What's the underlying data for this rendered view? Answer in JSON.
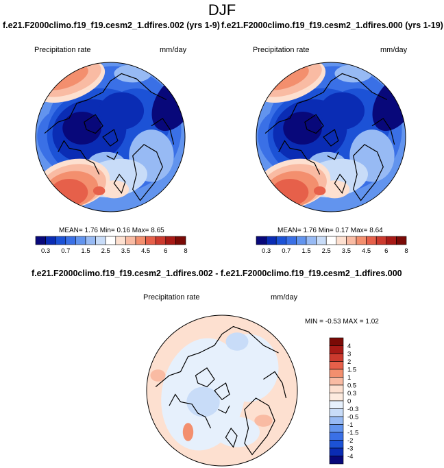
{
  "figure_title": "DJF",
  "colors": {
    "abs_palette": [
      "#08087a",
      "#0a2cb4",
      "#1c52d6",
      "#3a70e6",
      "#6294ee",
      "#97baf4",
      "#c8dcf8",
      "#ffffff",
      "#fde0d0",
      "#f9bba3",
      "#f38f6e",
      "#e6604a",
      "#cc3a2e",
      "#a81a16",
      "#7a0a06"
    ],
    "diff_palette": [
      "#08087a",
      "#0a2cb4",
      "#1c52d6",
      "#3a70e6",
      "#6294ee",
      "#97baf4",
      "#c8dcf8",
      "#e6f0fc",
      "#fdebdf",
      "#fde0d0",
      "#f9bba3",
      "#f38f6e",
      "#e6604a",
      "#cc3a2e",
      "#a81a16",
      "#7a0a06"
    ],
    "coast": "#000000"
  },
  "panels": [
    {
      "title": "f.e21.F2000climo.f19_f19.cesm2_1.dfires.002 (yrs 1-9)",
      "variable": "Precipitation rate",
      "units": "mm/day",
      "stats": {
        "mean_label": "MEAN=",
        "mean": "1.76",
        "min_label": "Min=",
        "min": "0.16",
        "max_label": "Max=",
        "max": "8.65"
      }
    },
    {
      "title": "f.e21.F2000climo.f19_f19.cesm2_1.dfires.000 (yrs 1-19)",
      "variable": "Precipitation rate",
      "units": "mm/day",
      "stats": {
        "mean_label": "MEAN=",
        "mean": "1.76",
        "min_label": "Min=",
        "min": "0.17",
        "max_label": "Max=",
        "max": "8.64"
      }
    }
  ],
  "abs_colorbar_ticks": [
    "0.3",
    "0.7",
    "1.5",
    "2.5",
    "3.5",
    "4.5",
    "6",
    "8"
  ],
  "diff_panel": {
    "title": "f.e21.F2000climo.f19_f19.cesm2_1.dfires.002 - f.e21.F2000climo.f19_f19.cesm2_1.dfires.000",
    "variable": "Precipitation rate",
    "units": "mm/day",
    "stats": {
      "min_label": "MIN =",
      "min": "-0.53",
      "max_label": "MAX =",
      "max": "1.02"
    }
  },
  "diff_colorbar_ticks": [
    "4",
    "3",
    "2",
    "1.5",
    "1",
    "0.5",
    "0.3",
    "0",
    "-0.3",
    "-0.5",
    "-1",
    "-1.5",
    "-2",
    "-3",
    "-4"
  ],
  "chart_data": [
    {
      "type": "heatmap",
      "projection": "north polar stereographic",
      "title": "f.e21.F2000climo.f19_f19.cesm2_1.dfires.002 (yrs 1-9)",
      "variable": "Precipitation rate",
      "units": "mm/day",
      "mean": 1.76,
      "min": 0.16,
      "max": 8.65,
      "levels": [
        0.3,
        0.5,
        0.7,
        1,
        1.5,
        2,
        2.5,
        3,
        3.5,
        4,
        4.5,
        5,
        6,
        7,
        8
      ]
    },
    {
      "type": "heatmap",
      "projection": "north polar stereographic",
      "title": "f.e21.F2000climo.f19_f19.cesm2_1.dfires.000 (yrs 1-19)",
      "variable": "Precipitation rate",
      "units": "mm/day",
      "mean": 1.76,
      "min": 0.17,
      "max": 8.64,
      "levels": [
        0.3,
        0.5,
        0.7,
        1,
        1.5,
        2,
        2.5,
        3,
        3.5,
        4,
        4.5,
        5,
        6,
        7,
        8
      ]
    },
    {
      "type": "heatmap",
      "projection": "north polar stereographic",
      "title": "f.e21.F2000climo.f19_f19.cesm2_1.dfires.002 - f.e21.F2000climo.f19_f19.cesm2_1.dfires.000",
      "variable": "Precipitation rate",
      "units": "mm/day",
      "min": -0.53,
      "max": 1.02,
      "levels": [
        -4,
        -3,
        -2,
        -1.5,
        -1,
        -0.5,
        -0.3,
        0,
        0.3,
        0.5,
        1,
        1.5,
        2,
        3,
        4
      ]
    }
  ]
}
